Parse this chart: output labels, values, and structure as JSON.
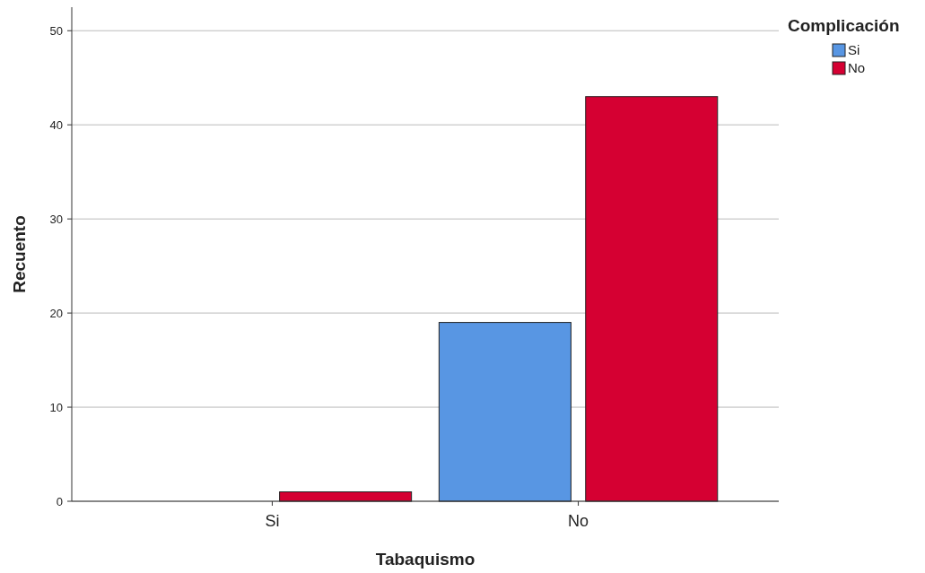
{
  "chart_data": {
    "type": "bar",
    "xlabel": "Tabaquismo",
    "ylabel": "Recuento",
    "legend_title": "Complicación",
    "categories": [
      "Si",
      "No"
    ],
    "series": [
      {
        "name": "Si",
        "color": "#5896e3",
        "values": [
          0,
          19
        ]
      },
      {
        "name": "No",
        "color": "#d50032",
        "values": [
          1,
          43
        ]
      }
    ],
    "ylim": [
      0,
      52.5
    ],
    "yticks": [
      0,
      10,
      20,
      30,
      40,
      50
    ],
    "grid": "y",
    "legend": "top right"
  }
}
